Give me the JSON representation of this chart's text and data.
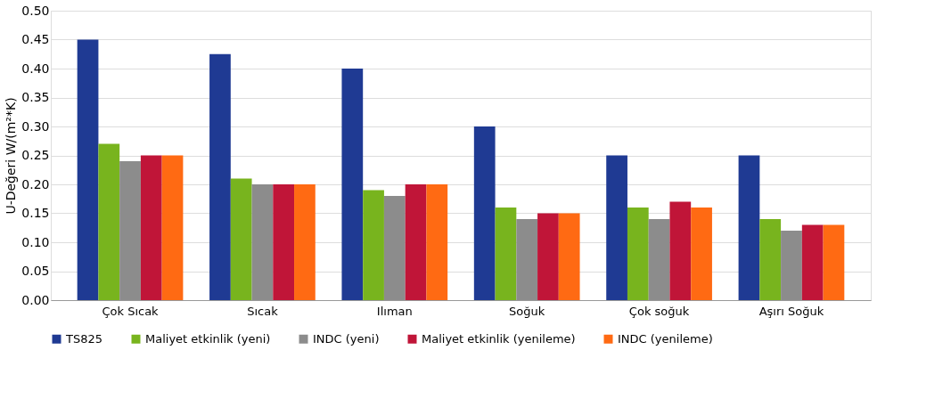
{
  "chart_data": {
    "type": "bar",
    "ylabel": "U-Değeri W/(m²*K)",
    "categories": [
      "Çok Sıcak",
      "Sıcak",
      "Ilıman",
      "Soğuk",
      "Çok soğuk",
      "Aşırı Soğuk"
    ],
    "series": [
      {
        "name": "TS825",
        "color": "#1f3a93",
        "values": [
          0.45,
          0.425,
          0.4,
          0.3,
          0.25,
          0.25
        ]
      },
      {
        "name": "Maliyet etkinlik (yeni)",
        "color": "#78b41e",
        "values": [
          0.27,
          0.21,
          0.19,
          0.16,
          0.16,
          0.14
        ]
      },
      {
        "name": "INDC (yeni)",
        "color": "#8c8c8c",
        "values": [
          0.24,
          0.2,
          0.18,
          0.14,
          0.14,
          0.12
        ]
      },
      {
        "name": "Maliyet etkinlik (yenileme)",
        "color": "#c01538",
        "values": [
          0.25,
          0.2,
          0.2,
          0.15,
          0.17,
          0.13
        ]
      },
      {
        "name": "INDC (yenileme)",
        "color": "#ff6a13",
        "values": [
          0.25,
          0.2,
          0.2,
          0.15,
          0.16,
          0.13
        ]
      }
    ],
    "ylim": [
      0,
      0.5
    ],
    "yticks": [
      {
        "value": 0,
        "label": "0.00"
      },
      {
        "value": 0.05,
        "label": "0.05"
      },
      {
        "value": 0.1,
        "label": "0.10"
      },
      {
        "value": 0.15,
        "label": "0.15"
      },
      {
        "value": 0.2,
        "label": "0.20"
      },
      {
        "value": 0.25,
        "label": "0.25"
      },
      {
        "value": 0.3,
        "label": "0.30"
      },
      {
        "value": 0.35,
        "label": "0.35"
      },
      {
        "value": 0.4,
        "label": "0.40"
      },
      {
        "value": 0.45,
        "label": "0.45"
      },
      {
        "value": 0.5,
        "label": "0.50"
      }
    ],
    "grid": "y",
    "legend": "bottom"
  }
}
